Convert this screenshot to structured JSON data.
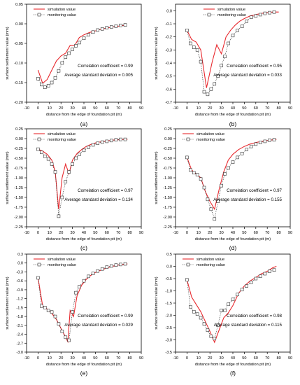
{
  "figure": {
    "panels": [
      {
        "caption": "(a)",
        "annotation_corr": "Correlation coefficient = 0.99",
        "annotation_std": "Average standard deviation = 0.005"
      },
      {
        "caption": "(b)",
        "annotation_corr": "Correlation coefficient = 0.95",
        "annotation_std": "Average standard deviation = 0.033"
      },
      {
        "caption": "(c)",
        "annotation_corr": "Correlation coefficient = 0.97",
        "annotation_std": "Average standard deviation = 0.134"
      },
      {
        "caption": "(d)",
        "annotation_corr": "Correlation coefficient = 0.97",
        "annotation_std": "Average standard deviation = 0.155"
      },
      {
        "caption": "(e)",
        "annotation_corr": "Correlation coefficient = 0.99",
        "annotation_std": "Average standard deviation = 0.029"
      },
      {
        "caption": "(f)",
        "annotation_corr": "Correlation coefficient = 0.98",
        "annotation_std": "Average standard deviation = 0.115"
      }
    ]
  },
  "colors": {
    "simulation": "#e8292e",
    "monitoring": "#333333",
    "axis": "#000000"
  },
  "chart_data": [
    {
      "type": "line",
      "panel": "(a)",
      "xlabel": "distance from the edge of foundation pit (m)",
      "ylabel": "surface settlement value (mm)",
      "xlim": [
        -10,
        90
      ],
      "ylim": [
        -0.2,
        0.05
      ],
      "xticks": [
        "-10",
        "0",
        "10",
        "20",
        "30",
        "40",
        "50",
        "60",
        "70",
        "80",
        "90"
      ],
      "yticks": [
        "0.05",
        "0.00",
        "-0.05",
        "-0.10",
        "-0.15",
        "-0.20"
      ],
      "legend": [
        "simulation value",
        "monitoring value"
      ],
      "legend_position": "top-left",
      "series": [
        {
          "name": "simulation value",
          "style": "solid-line",
          "x": [
            0,
            4,
            8,
            12,
            16,
            20,
            24,
            28,
            32,
            36,
            40,
            45,
            50,
            55,
            60,
            65,
            70,
            75,
            77
          ],
          "y": [
            -0.118,
            -0.152,
            -0.142,
            -0.118,
            -0.095,
            -0.082,
            -0.075,
            -0.055,
            -0.055,
            -0.035,
            -0.028,
            -0.022,
            -0.018,
            -0.014,
            -0.011,
            -0.008,
            -0.006,
            -0.004,
            -0.003
          ]
        },
        {
          "name": "monitoring value",
          "style": "dotted-squares",
          "x": [
            0,
            3,
            6,
            9,
            12,
            15,
            18,
            21,
            24,
            27,
            30,
            33,
            36,
            40,
            44,
            48,
            52,
            56,
            60,
            64,
            68,
            72,
            76
          ],
          "y": [
            -0.14,
            -0.155,
            -0.162,
            -0.158,
            -0.15,
            -0.138,
            -0.12,
            -0.1,
            -0.085,
            -0.075,
            -0.065,
            -0.056,
            -0.048,
            -0.037,
            -0.028,
            -0.021,
            -0.016,
            -0.013,
            -0.01,
            -0.008,
            -0.006,
            -0.004,
            -0.003
          ]
        }
      ]
    },
    {
      "type": "line",
      "panel": "(b)",
      "xlabel": "distance from the edge of foundation pit (m)",
      "ylabel": "surface settlement value (mm)",
      "xlim": [
        -10,
        90
      ],
      "ylim": [
        -0.7,
        0.05
      ],
      "xticks": [
        "-10",
        "0",
        "10",
        "20",
        "30",
        "40",
        "50",
        "60",
        "70",
        "80",
        "90"
      ],
      "yticks": [
        "0.0",
        "-0.1",
        "-0.2",
        "-0.3",
        "-0.4",
        "-0.5",
        "-0.6",
        "-0.7"
      ],
      "legend": [
        "simulation value",
        "monitoring value"
      ],
      "legend_position": "top-center",
      "series": [
        {
          "name": "simulation value",
          "style": "solid-line",
          "x": [
            0,
            4,
            8,
            12,
            17,
            22,
            26,
            30,
            34,
            38,
            42,
            46,
            50,
            55,
            60,
            65,
            70,
            75,
            80
          ],
          "y": [
            -0.15,
            -0.22,
            -0.24,
            -0.3,
            -0.59,
            -0.39,
            -0.26,
            -0.33,
            -0.2,
            -0.15,
            -0.11,
            -0.08,
            -0.06,
            -0.04,
            -0.03,
            -0.02,
            -0.015,
            -0.01,
            -0.01
          ]
        },
        {
          "name": "monitoring value",
          "style": "dotted-squares",
          "x": [
            0,
            3,
            6,
            9,
            12,
            15,
            18,
            21,
            24,
            27,
            30,
            33,
            36,
            40,
            44,
            48,
            52,
            56,
            60,
            64,
            68,
            72,
            76
          ],
          "y": [
            -0.15,
            -0.25,
            -0.28,
            -0.3,
            -0.39,
            -0.62,
            -0.64,
            -0.6,
            -0.56,
            -0.5,
            -0.42,
            -0.35,
            -0.25,
            -0.19,
            -0.15,
            -0.12,
            -0.08,
            -0.05,
            -0.04,
            -0.03,
            -0.02,
            -0.015,
            -0.01
          ]
        }
      ]
    },
    {
      "type": "line",
      "panel": "(c)",
      "xlabel": "distance from the edge of foundation pit (m)",
      "ylabel": "surface settlement value (mm)",
      "xlim": [
        -10,
        90
      ],
      "ylim": [
        -2.25,
        0.25
      ],
      "xticks": [
        "-10",
        "0",
        "10",
        "20",
        "30",
        "40",
        "50",
        "60",
        "70",
        "80",
        "90"
      ],
      "yticks": [
        "0.25",
        "0.00",
        "-0.25",
        "-0.50",
        "-0.75",
        "-1.00",
        "-1.25",
        "-1.50",
        "-1.75",
        "-2.00",
        "-2.25"
      ],
      "legend": [
        "simulation value",
        "monitoring value"
      ],
      "legend_position": "top-left",
      "series": [
        {
          "name": "simulation value",
          "style": "solid-line",
          "x": [
            0,
            4,
            8,
            12,
            15,
            18,
            21,
            24,
            27,
            30,
            34,
            38,
            42,
            46,
            50,
            55,
            60,
            65,
            70,
            75,
            78
          ],
          "y": [
            -0.27,
            -0.32,
            -0.4,
            -0.55,
            -0.85,
            -1.8,
            -1.0,
            -0.65,
            -0.9,
            -0.55,
            -0.38,
            -0.28,
            -0.2,
            -0.15,
            -0.11,
            -0.08,
            -0.06,
            -0.04,
            -0.03,
            -0.02,
            -0.02
          ]
        },
        {
          "name": "monitoring value",
          "style": "dotted-squares",
          "x": [
            0,
            3,
            6,
            9,
            12,
            15,
            18,
            21,
            24,
            27,
            30,
            33,
            36,
            40,
            44,
            48,
            52,
            56,
            60,
            64,
            68,
            72,
            76
          ],
          "y": [
            -0.27,
            -0.35,
            -0.45,
            -0.52,
            -0.65,
            -0.85,
            -1.98,
            -1.5,
            -1.1,
            -0.85,
            -0.65,
            -0.5,
            -0.4,
            -0.3,
            -0.22,
            -0.16,
            -0.12,
            -0.09,
            -0.07,
            -0.05,
            -0.03,
            -0.02,
            -0.02
          ]
        }
      ]
    },
    {
      "type": "line",
      "panel": "(d)",
      "xlabel": "distance from the edge of foundation pit (m)",
      "ylabel": "surface settlement value (mm)",
      "xlim": [
        -10,
        90
      ],
      "ylim": [
        -2.25,
        0.25
      ],
      "xticks": [
        "-10",
        "0",
        "10",
        "20",
        "30",
        "40",
        "50",
        "60",
        "70",
        "80",
        "90"
      ],
      "yticks": [
        "0.25",
        "0.00",
        "-0.25",
        "-0.50",
        "-0.75",
        "-1.00",
        "-1.25",
        "-1.50",
        "-1.75",
        "-2.00",
        "-2.25"
      ],
      "legend": [
        "simulation value",
        "monitoring value"
      ],
      "legend_position": "top-left",
      "series": [
        {
          "name": "simulation value",
          "style": "solid-line",
          "x": [
            0,
            4,
            8,
            12,
            16,
            20,
            24,
            28,
            32,
            36,
            40,
            45,
            50,
            55,
            60,
            65,
            70,
            75,
            78
          ],
          "y": [
            -0.48,
            -0.8,
            -0.9,
            -1.0,
            -1.35,
            -1.6,
            -1.8,
            -1.3,
            -0.85,
            -0.55,
            -0.4,
            -0.28,
            -0.2,
            -0.14,
            -0.1,
            -0.07,
            -0.05,
            -0.03,
            -0.02
          ]
        },
        {
          "name": "monitoring value",
          "style": "dotted-squares",
          "x": [
            0,
            3,
            6,
            9,
            12,
            15,
            18,
            21,
            24,
            27,
            30,
            33,
            36,
            40,
            44,
            48,
            52,
            56,
            60,
            64,
            68,
            72,
            76
          ],
          "y": [
            -0.48,
            -0.8,
            -0.87,
            -0.92,
            -1.03,
            -1.25,
            -1.55,
            -1.8,
            -2.05,
            -1.6,
            -1.2,
            -0.9,
            -0.75,
            -0.6,
            -0.48,
            -0.38,
            -0.28,
            -0.2,
            -0.14,
            -0.1,
            -0.07,
            -0.04,
            -0.03
          ]
        }
      ]
    },
    {
      "type": "line",
      "panel": "(e)",
      "xlabel": "distance from the edge of foundation pit (m)",
      "ylabel": "surface settlement value (mm)",
      "xlim": [
        -10,
        90
      ],
      "ylim": [
        -3.0,
        0.3
      ],
      "xticks": [
        "-10",
        "0",
        "10",
        "20",
        "30",
        "40",
        "50",
        "60",
        "70",
        "80",
        "90"
      ],
      "yticks": [
        "0.3",
        "0.0",
        "-0.3",
        "-0.6",
        "-0.9",
        "-1.2",
        "-1.5",
        "-1.8",
        "-2.1",
        "-2.4",
        "-2.7",
        "-3.0"
      ],
      "legend": [
        "simulation value",
        "monitoring value"
      ],
      "legend_position": "top-left",
      "series": [
        {
          "name": "simulation value",
          "style": "solid-line",
          "x": [
            0,
            4,
            8,
            12,
            16,
            20,
            24,
            26,
            28,
            31,
            34,
            38,
            42,
            46,
            50,
            55,
            60,
            65,
            70,
            75,
            78
          ],
          "y": [
            -0.5,
            -1.45,
            -1.55,
            -1.7,
            -1.9,
            -2.2,
            -2.5,
            -2.65,
            -1.6,
            -1.8,
            -1.1,
            -0.75,
            -0.55,
            -0.42,
            -0.32,
            -0.24,
            -0.17,
            -0.11,
            -0.07,
            -0.04,
            -0.03
          ]
        },
        {
          "name": "monitoring value",
          "style": "dotted-squares",
          "x": [
            0,
            3,
            6,
            9,
            12,
            15,
            18,
            21,
            24,
            27,
            30,
            33,
            36,
            40,
            44,
            48,
            52,
            56,
            60,
            64,
            68,
            72,
            76
          ],
          "y": [
            -0.5,
            -1.45,
            -1.5,
            -1.6,
            -1.65,
            -1.8,
            -2.05,
            -2.3,
            -2.5,
            -2.6,
            -1.65,
            -1.0,
            -0.8,
            -0.6,
            -0.45,
            -0.35,
            -0.27,
            -0.2,
            -0.14,
            -0.1,
            -0.07,
            -0.05,
            -0.03
          ]
        }
      ]
    },
    {
      "type": "line",
      "panel": "(f)",
      "xlabel": "distance from the edge of foundation pit (m)",
      "ylabel": "surface settlement value (mm)",
      "xlim": [
        -10,
        90
      ],
      "ylim": [
        -3.5,
        0.5
      ],
      "xticks": [
        "-10",
        "0",
        "10",
        "20",
        "30",
        "40",
        "50",
        "60",
        "70",
        "80",
        "90"
      ],
      "yticks": [
        "0.5",
        "0.0",
        "-0.5",
        "-1.0",
        "-1.5",
        "-2.0",
        "-2.5",
        "-3.0",
        "-3.5"
      ],
      "legend": [
        "simulation value",
        "monitoring value"
      ],
      "legend_position": "top-left",
      "series": [
        {
          "name": "simulation value",
          "style": "solid-line",
          "x": [
            0,
            4,
            8,
            12,
            16,
            20,
            24,
            28,
            32,
            36,
            40,
            45,
            50,
            55,
            60,
            65,
            70,
            75,
            78
          ],
          "y": [
            -0.55,
            -1.25,
            -1.55,
            -1.85,
            -2.25,
            -2.65,
            -3.1,
            -2.6,
            -2.1,
            -1.9,
            -1.6,
            -1.1,
            -0.8,
            -0.6,
            -0.45,
            -0.3,
            -0.2,
            -0.05,
            0.0
          ]
        },
        {
          "name": "monitoring value",
          "style": "dotted-squares",
          "x": [
            0,
            3,
            6,
            9,
            12,
            15,
            18,
            21,
            24,
            27,
            30,
            33,
            36,
            40,
            44,
            48,
            52,
            56,
            60,
            64,
            68,
            72,
            76
          ],
          "y": [
            -0.55,
            -1.65,
            -1.85,
            -1.95,
            -2.1,
            -2.35,
            -2.6,
            -2.85,
            -2.95,
            -2.4,
            -1.8,
            -1.8,
            -1.55,
            -1.35,
            -1.15,
            -0.95,
            -0.8,
            -0.65,
            -0.5,
            -0.4,
            -0.3,
            -0.2,
            -0.15
          ]
        }
      ]
    }
  ]
}
